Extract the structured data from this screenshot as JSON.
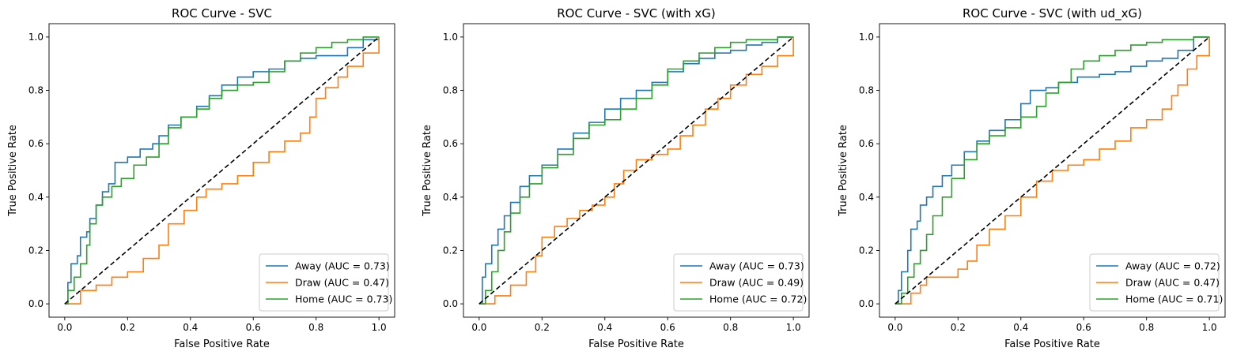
{
  "chart_data": [
    {
      "type": "line",
      "title": "ROC Curve - SVC",
      "xlabel": "False Positive Rate",
      "ylabel": "True Positive Rate",
      "xlim": [
        -0.05,
        1.05
      ],
      "ylim": [
        -0.05,
        1.05
      ],
      "xticks": [
        "0.0",
        "0.2",
        "0.4",
        "0.6",
        "0.8",
        "1.0"
      ],
      "yticks": [
        "0.0",
        "0.2",
        "0.4",
        "0.6",
        "0.8",
        "1.0"
      ],
      "legend_position": "lower-right",
      "series": [
        {
          "name": "Away (AUC = 0.73)",
          "color": "#1f77b4",
          "points": [
            [
              0,
              0
            ],
            [
              0.01,
              0.08
            ],
            [
              0.02,
              0.15
            ],
            [
              0.04,
              0.18
            ],
            [
              0.05,
              0.25
            ],
            [
              0.07,
              0.27
            ],
            [
              0.08,
              0.32
            ],
            [
              0.1,
              0.37
            ],
            [
              0.12,
              0.42
            ],
            [
              0.14,
              0.45
            ],
            [
              0.16,
              0.53
            ],
            [
              0.2,
              0.55
            ],
            [
              0.24,
              0.58
            ],
            [
              0.28,
              0.6
            ],
            [
              0.3,
              0.63
            ],
            [
              0.33,
              0.67
            ],
            [
              0.37,
              0.7
            ],
            [
              0.42,
              0.74
            ],
            [
              0.46,
              0.78
            ],
            [
              0.5,
              0.82
            ],
            [
              0.55,
              0.85
            ],
            [
              0.6,
              0.87
            ],
            [
              0.65,
              0.88
            ],
            [
              0.7,
              0.91
            ],
            [
              0.75,
              0.92
            ],
            [
              0.8,
              0.93
            ],
            [
              0.85,
              0.93
            ],
            [
              0.9,
              0.96
            ],
            [
              0.95,
              0.99
            ],
            [
              1.0,
              1.0
            ]
          ]
        },
        {
          "name": "Draw (AUC = 0.47)",
          "color": "#ff7f0e",
          "points": [
            [
              0,
              0
            ],
            [
              0.05,
              0.05
            ],
            [
              0.1,
              0.07
            ],
            [
              0.15,
              0.1
            ],
            [
              0.2,
              0.12
            ],
            [
              0.25,
              0.17
            ],
            [
              0.3,
              0.22
            ],
            [
              0.33,
              0.3
            ],
            [
              0.38,
              0.35
            ],
            [
              0.42,
              0.4
            ],
            [
              0.45,
              0.43
            ],
            [
              0.5,
              0.45
            ],
            [
              0.55,
              0.48
            ],
            [
              0.6,
              0.53
            ],
            [
              0.65,
              0.57
            ],
            [
              0.7,
              0.61
            ],
            [
              0.75,
              0.64
            ],
            [
              0.78,
              0.7
            ],
            [
              0.8,
              0.77
            ],
            [
              0.83,
              0.81
            ],
            [
              0.87,
              0.85
            ],
            [
              0.9,
              0.89
            ],
            [
              0.95,
              0.94
            ],
            [
              1.0,
              1.0
            ]
          ]
        },
        {
          "name": "Home (AUC = 0.73)",
          "color": "#2ca02c",
          "points": [
            [
              0,
              0
            ],
            [
              0.01,
              0.05
            ],
            [
              0.03,
              0.1
            ],
            [
              0.05,
              0.15
            ],
            [
              0.07,
              0.22
            ],
            [
              0.08,
              0.3
            ],
            [
              0.1,
              0.37
            ],
            [
              0.12,
              0.4
            ],
            [
              0.15,
              0.44
            ],
            [
              0.18,
              0.47
            ],
            [
              0.22,
              0.52
            ],
            [
              0.26,
              0.55
            ],
            [
              0.3,
              0.6
            ],
            [
              0.33,
              0.66
            ],
            [
              0.37,
              0.7
            ],
            [
              0.42,
              0.73
            ],
            [
              0.46,
              0.77
            ],
            [
              0.5,
              0.8
            ],
            [
              0.55,
              0.82
            ],
            [
              0.6,
              0.83
            ],
            [
              0.65,
              0.87
            ],
            [
              0.7,
              0.91
            ],
            [
              0.75,
              0.94
            ],
            [
              0.8,
              0.96
            ],
            [
              0.85,
              0.98
            ],
            [
              0.9,
              0.99
            ],
            [
              0.95,
              1.0
            ],
            [
              1.0,
              1.0
            ]
          ]
        }
      ]
    },
    {
      "type": "line",
      "title": "ROC Curve - SVC (with xG)",
      "xlabel": "False Positive Rate",
      "ylabel": "True Positive Rate",
      "xlim": [
        -0.05,
        1.05
      ],
      "ylim": [
        -0.05,
        1.05
      ],
      "xticks": [
        "0.0",
        "0.2",
        "0.4",
        "0.6",
        "0.8",
        "1.0"
      ],
      "yticks": [
        "0.0",
        "0.2",
        "0.4",
        "0.6",
        "0.8",
        "1.0"
      ],
      "legend_position": "lower-right",
      "series": [
        {
          "name": "Away (AUC = 0.73)",
          "color": "#1f77b4",
          "points": [
            [
              0,
              0
            ],
            [
              0.01,
              0.1
            ],
            [
              0.02,
              0.15
            ],
            [
              0.04,
              0.22
            ],
            [
              0.06,
              0.28
            ],
            [
              0.08,
              0.33
            ],
            [
              0.1,
              0.38
            ],
            [
              0.13,
              0.44
            ],
            [
              0.16,
              0.48
            ],
            [
              0.2,
              0.52
            ],
            [
              0.25,
              0.58
            ],
            [
              0.3,
              0.64
            ],
            [
              0.35,
              0.68
            ],
            [
              0.4,
              0.73
            ],
            [
              0.45,
              0.77
            ],
            [
              0.5,
              0.8
            ],
            [
              0.55,
              0.83
            ],
            [
              0.6,
              0.87
            ],
            [
              0.65,
              0.9
            ],
            [
              0.7,
              0.92
            ],
            [
              0.75,
              0.94
            ],
            [
              0.8,
              0.95
            ],
            [
              0.85,
              0.97
            ],
            [
              0.9,
              0.98
            ],
            [
              0.95,
              1.0
            ],
            [
              1.0,
              1.0
            ]
          ]
        },
        {
          "name": "Draw (AUC = 0.49)",
          "color": "#ff7f0e",
          "points": [
            [
              0,
              0
            ],
            [
              0.05,
              0.03
            ],
            [
              0.1,
              0.07
            ],
            [
              0.15,
              0.12
            ],
            [
              0.18,
              0.18
            ],
            [
              0.2,
              0.25
            ],
            [
              0.24,
              0.29
            ],
            [
              0.28,
              0.32
            ],
            [
              0.32,
              0.35
            ],
            [
              0.36,
              0.37
            ],
            [
              0.4,
              0.4
            ],
            [
              0.43,
              0.45
            ],
            [
              0.46,
              0.5
            ],
            [
              0.5,
              0.54
            ],
            [
              0.55,
              0.56
            ],
            [
              0.6,
              0.58
            ],
            [
              0.64,
              0.63
            ],
            [
              0.68,
              0.67
            ],
            [
              0.72,
              0.73
            ],
            [
              0.76,
              0.77
            ],
            [
              0.8,
              0.82
            ],
            [
              0.85,
              0.86
            ],
            [
              0.9,
              0.89
            ],
            [
              0.95,
              0.93
            ],
            [
              1.0,
              1.0
            ]
          ]
        },
        {
          "name": "Home (AUC = 0.72)",
          "color": "#2ca02c",
          "points": [
            [
              0,
              0
            ],
            [
              0.02,
              0.05
            ],
            [
              0.04,
              0.12
            ],
            [
              0.06,
              0.2
            ],
            [
              0.08,
              0.27
            ],
            [
              0.1,
              0.34
            ],
            [
              0.13,
              0.4
            ],
            [
              0.16,
              0.45
            ],
            [
              0.2,
              0.51
            ],
            [
              0.25,
              0.56
            ],
            [
              0.3,
              0.62
            ],
            [
              0.35,
              0.67
            ],
            [
              0.4,
              0.69
            ],
            [
              0.45,
              0.73
            ],
            [
              0.5,
              0.77
            ],
            [
              0.55,
              0.82
            ],
            [
              0.6,
              0.88
            ],
            [
              0.65,
              0.91
            ],
            [
              0.7,
              0.94
            ],
            [
              0.75,
              0.96
            ],
            [
              0.8,
              0.98
            ],
            [
              0.85,
              0.99
            ],
            [
              0.9,
              0.99
            ],
            [
              0.95,
              1.0
            ],
            [
              1.0,
              1.0
            ]
          ]
        }
      ]
    },
    {
      "type": "line",
      "title": "ROC Curve - SVC (with ud_xG)",
      "xlabel": "False Positive Rate",
      "ylabel": "True Positive Rate",
      "xlim": [
        -0.05,
        1.05
      ],
      "ylim": [
        -0.05,
        1.05
      ],
      "xticks": [
        "0.0",
        "0.2",
        "0.4",
        "0.6",
        "0.8",
        "1.0"
      ],
      "yticks": [
        "0.0",
        "0.2",
        "0.4",
        "0.6",
        "0.8",
        "1.0"
      ],
      "legend_position": "lower-right",
      "series": [
        {
          "name": "Away (AUC = 0.72)",
          "color": "#1f77b4",
          "points": [
            [
              0,
              0
            ],
            [
              0.01,
              0.05
            ],
            [
              0.02,
              0.12
            ],
            [
              0.04,
              0.2
            ],
            [
              0.05,
              0.28
            ],
            [
              0.07,
              0.31
            ],
            [
              0.08,
              0.37
            ],
            [
              0.1,
              0.4
            ],
            [
              0.12,
              0.44
            ],
            [
              0.15,
              0.48
            ],
            [
              0.18,
              0.52
            ],
            [
              0.22,
              0.57
            ],
            [
              0.26,
              0.61
            ],
            [
              0.3,
              0.65
            ],
            [
              0.35,
              0.69
            ],
            [
              0.4,
              0.75
            ],
            [
              0.43,
              0.8
            ],
            [
              0.48,
              0.81
            ],
            [
              0.52,
              0.83
            ],
            [
              0.58,
              0.85
            ],
            [
              0.65,
              0.86
            ],
            [
              0.7,
              0.87
            ],
            [
              0.75,
              0.89
            ],
            [
              0.8,
              0.91
            ],
            [
              0.85,
              0.92
            ],
            [
              0.9,
              0.95
            ],
            [
              0.95,
              1.0
            ],
            [
              1.0,
              1.0
            ]
          ]
        },
        {
          "name": "Draw (AUC = 0.47)",
          "color": "#ff7f0e",
          "points": [
            [
              0,
              0
            ],
            [
              0.05,
              0.04
            ],
            [
              0.08,
              0.07
            ],
            [
              0.1,
              0.1
            ],
            [
              0.15,
              0.1
            ],
            [
              0.2,
              0.13
            ],
            [
              0.23,
              0.16
            ],
            [
              0.26,
              0.22
            ],
            [
              0.3,
              0.28
            ],
            [
              0.35,
              0.33
            ],
            [
              0.4,
              0.4
            ],
            [
              0.45,
              0.46
            ],
            [
              0.5,
              0.5
            ],
            [
              0.55,
              0.52
            ],
            [
              0.6,
              0.54
            ],
            [
              0.65,
              0.58
            ],
            [
              0.7,
              0.61
            ],
            [
              0.75,
              0.66
            ],
            [
              0.8,
              0.69
            ],
            [
              0.85,
              0.73
            ],
            [
              0.88,
              0.78
            ],
            [
              0.9,
              0.82
            ],
            [
              0.93,
              0.88
            ],
            [
              0.96,
              0.93
            ],
            [
              1.0,
              1.0
            ]
          ]
        },
        {
          "name": "Home (AUC = 0.71)",
          "color": "#2ca02c",
          "points": [
            [
              0,
              0
            ],
            [
              0.02,
              0.04
            ],
            [
              0.04,
              0.1
            ],
            [
              0.06,
              0.15
            ],
            [
              0.08,
              0.2
            ],
            [
              0.1,
              0.26
            ],
            [
              0.12,
              0.33
            ],
            [
              0.15,
              0.4
            ],
            [
              0.18,
              0.47
            ],
            [
              0.22,
              0.54
            ],
            [
              0.26,
              0.6
            ],
            [
              0.3,
              0.63
            ],
            [
              0.35,
              0.66
            ],
            [
              0.4,
              0.7
            ],
            [
              0.45,
              0.74
            ],
            [
              0.48,
              0.79
            ],
            [
              0.52,
              0.83
            ],
            [
              0.56,
              0.88
            ],
            [
              0.6,
              0.91
            ],
            [
              0.65,
              0.93
            ],
            [
              0.7,
              0.95
            ],
            [
              0.75,
              0.97
            ],
            [
              0.8,
              0.98
            ],
            [
              0.85,
              0.99
            ],
            [
              0.9,
              0.99
            ],
            [
              0.95,
              1.0
            ],
            [
              1.0,
              1.0
            ]
          ]
        }
      ]
    }
  ]
}
